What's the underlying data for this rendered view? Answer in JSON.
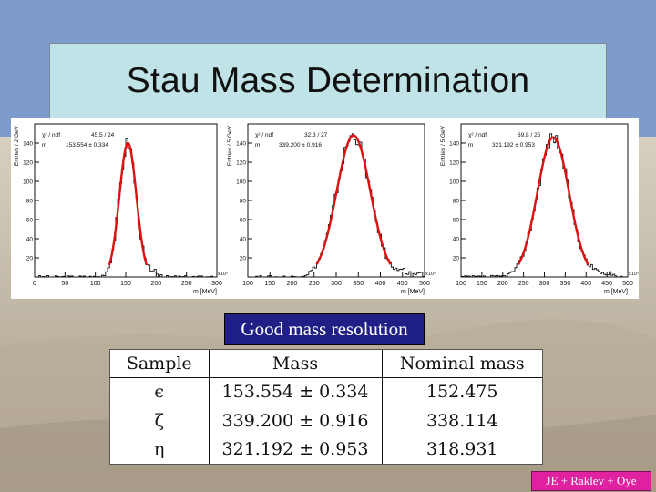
{
  "slide": {
    "title": "Stau Mass Determination",
    "caption": "Good mass resolution",
    "footer": "JE + Raklev + Oye"
  },
  "colors": {
    "title_box_bg": "#bfe3e6",
    "caption_bg": "#1f1f86",
    "footer_bg": "#e022a0",
    "fit_curve": "#dd1111"
  },
  "table": {
    "headers": [
      "Sample",
      "Mass",
      "Nominal mass"
    ],
    "rows": [
      [
        "ϵ",
        "153.554 ± 0.334",
        "152.475"
      ],
      [
        "ζ",
        "339.200 ± 0.916",
        "338.114"
      ],
      [
        "η",
        "321.192 ± 0.953",
        "318.931"
      ]
    ]
  },
  "chart_data": [
    {
      "type": "area",
      "ylabel": "Entries / 2 GeV",
      "xlabel": "m [MeV]",
      "x_multiplier": "x10³",
      "x_ticks": [
        "0",
        "50",
        "100",
        "150",
        "200",
        "250",
        "300"
      ],
      "y_ticks": [
        "20",
        "40",
        "60",
        "80",
        "100",
        "120",
        "140"
      ],
      "xlim": [
        0,
        300
      ],
      "ylim": [
        0,
        160
      ],
      "stats": {
        "chi2_label": "χ² / ndf",
        "chi2": "45.5 / 24",
        "mass_label": "m",
        "mass": "153.554 ± 0.334"
      },
      "peak": 153.554,
      "width": 14,
      "height": 140
    },
    {
      "type": "area",
      "ylabel": "Entries / 5 GeV",
      "xlabel": "m [MeV]",
      "x_multiplier": "x10³",
      "x_ticks": [
        "100",
        "150",
        "200",
        "250",
        "300",
        "350",
        "400",
        "450",
        "500"
      ],
      "y_ticks": [
        "20",
        "40",
        "60",
        "80",
        "100",
        "120",
        "140"
      ],
      "xlim": [
        100,
        500
      ],
      "ylim": [
        0,
        160
      ],
      "stats": {
        "chi2_label": "χ² / ndf",
        "chi2": "32.3 / 27",
        "mass_label": "m",
        "mass": "339.200 ± 0.916"
      },
      "peak": 339.2,
      "width": 38,
      "height": 148
    },
    {
      "type": "area",
      "ylabel": "Entries / 5 GeV",
      "xlabel": "m [MeV]",
      "x_multiplier": "x10³",
      "x_ticks": [
        "100",
        "150",
        "200",
        "250",
        "300",
        "350",
        "400",
        "450",
        "500"
      ],
      "y_ticks": [
        "20",
        "40",
        "60",
        "80",
        "100",
        "120",
        "140"
      ],
      "xlim": [
        100,
        500
      ],
      "ylim": [
        0,
        160
      ],
      "stats": {
        "chi2_label": "χ² / ndf",
        "chi2": "69.8 / 25",
        "mass_label": "m",
        "mass": "321.192 ± 0.953"
      },
      "peak": 321.192,
      "width": 38,
      "height": 146
    }
  ]
}
